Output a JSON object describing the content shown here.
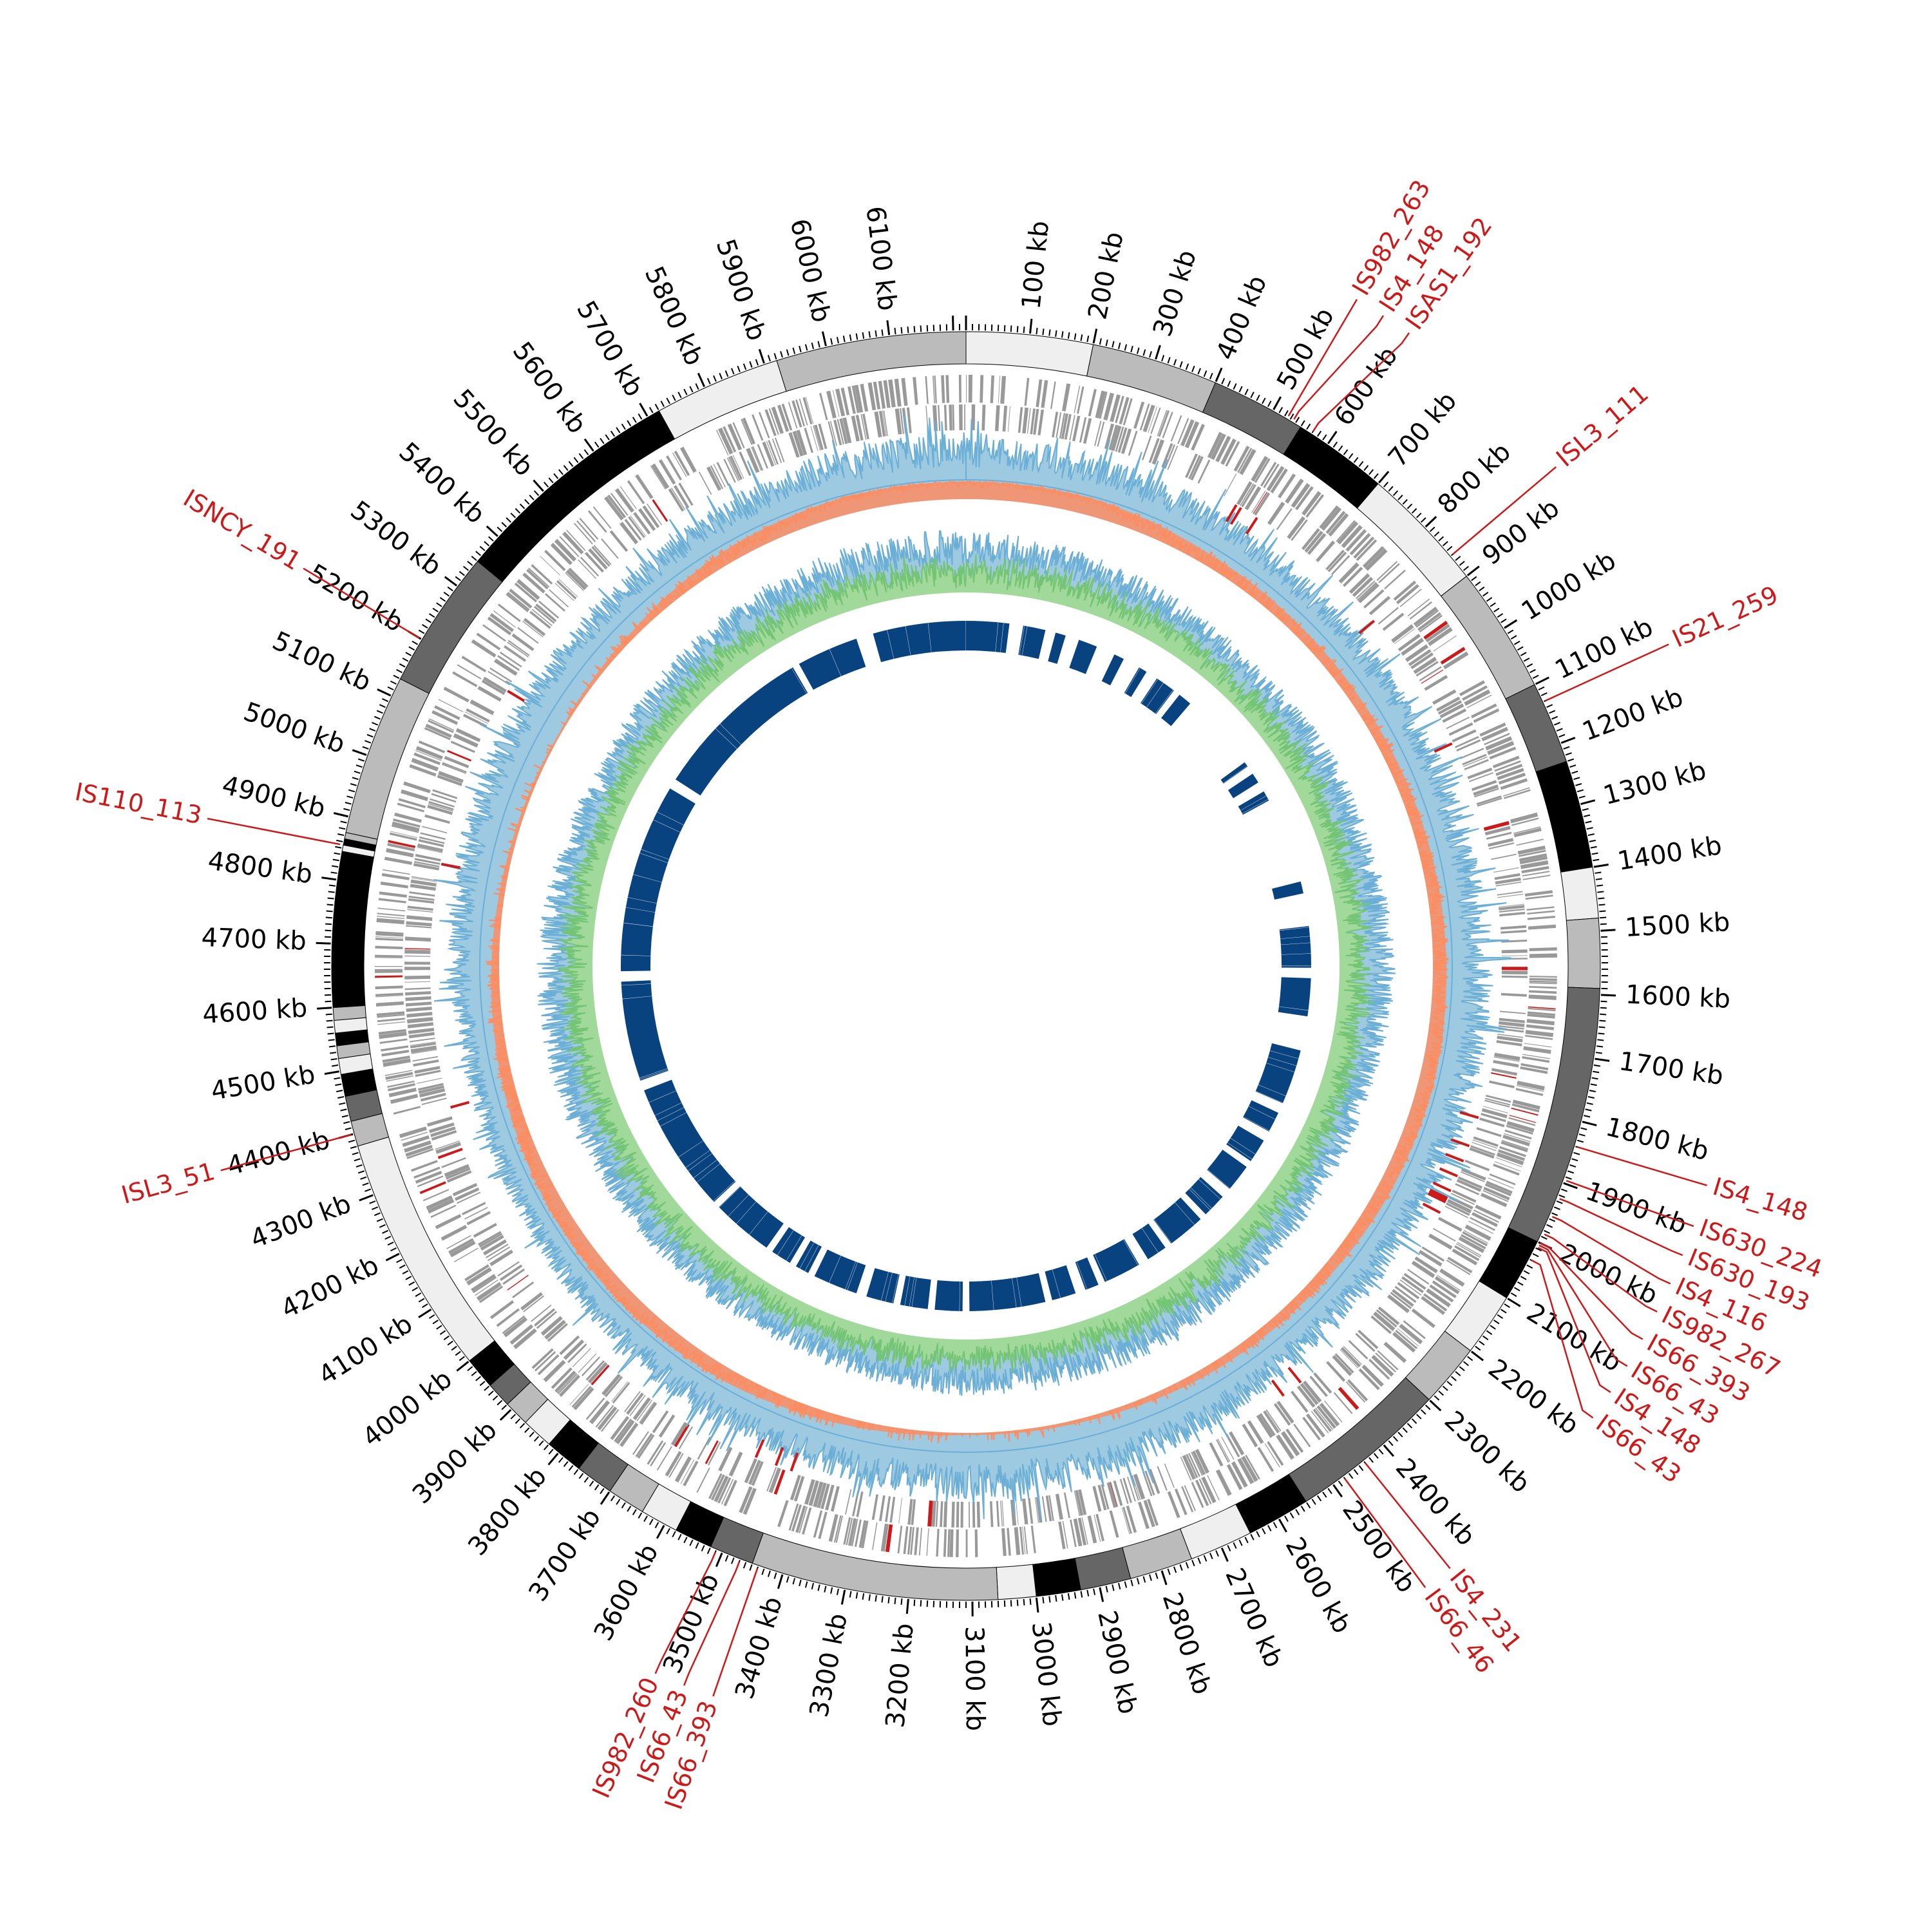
{
  "chart_data": {
    "type": "circular-genome",
    "genome_length_kb": 6220,
    "tick_unit": "kb",
    "major_tick_kb": 100,
    "minor_tick_kb": 10,
    "tick_labels": [
      "100 kb",
      "200 kb",
      "300 kb",
      "400 kb",
      "500 kb",
      "600 kb",
      "700 kb",
      "800 kb",
      "900 kb",
      "1000 kb",
      "1100 kb",
      "1200 kb",
      "1300 kb",
      "1400 kb",
      "1500 kb",
      "1600 kb",
      "1700 kb",
      "1800 kb",
      "1900 kb",
      "2000 kb",
      "2100 kb",
      "2200 kb",
      "2300 kb",
      "2400 kb",
      "2500 kb",
      "2600 kb",
      "2700 kb",
      "2800 kb",
      "2900 kb",
      "3000 kb",
      "3100 kb",
      "3200 kb",
      "3300 kb",
      "3400 kb",
      "3500 kb",
      "3600 kb",
      "3700 kb",
      "3800 kb",
      "3900 kb",
      "4000 kb",
      "4100 kb",
      "4200 kb",
      "4300 kb",
      "4400 kb",
      "4500 kb",
      "4600 kb",
      "4700 kb",
      "4800 kb",
      "4900 kb",
      "5000 kb",
      "5100 kb",
      "5200 kb",
      "5300 kb",
      "5400 kb",
      "5500 kb",
      "5600 kb",
      "5700 kb",
      "5800 kb",
      "5900 kb",
      "6000 kb",
      "6100 kb"
    ],
    "colors": {
      "band": [
        "#efefef",
        "#bbbbbb",
        "#666666",
        "#000000"
      ],
      "is_element": "#cc1a1a",
      "gene": "#999999",
      "skew_pos": "#6baed6",
      "skew_pos_fill": "#9ecae1",
      "skew_neg": "#fc8d62",
      "gc_line": "#74c476",
      "blocks": "#08427f"
    },
    "karyotype_bands": [
      [
        0,
        200,
        0
      ],
      [
        200,
        400,
        1
      ],
      [
        400,
        550,
        2
      ],
      [
        550,
        700,
        3
      ],
      [
        700,
        900,
        0
      ],
      [
        900,
        1100,
        1
      ],
      [
        1100,
        1230,
        2
      ],
      [
        1230,
        1400,
        3
      ],
      [
        1400,
        1480,
        0
      ],
      [
        1480,
        1590,
        1
      ],
      [
        1590,
        2000,
        2
      ],
      [
        2000,
        2100,
        3
      ],
      [
        2100,
        2200,
        0
      ],
      [
        2200,
        2300,
        1
      ],
      [
        2300,
        2550,
        2
      ],
      [
        2550,
        2650,
        3
      ],
      [
        2650,
        2750,
        0
      ],
      [
        2750,
        2850,
        1
      ],
      [
        2850,
        2930,
        2
      ],
      [
        2930,
        3000,
        3
      ],
      [
        3000,
        3060,
        0
      ],
      [
        3060,
        3450,
        1
      ],
      [
        3450,
        3520,
        2
      ],
      [
        3520,
        3580,
        3
      ],
      [
        3580,
        3640,
        0
      ],
      [
        3640,
        3700,
        1
      ],
      [
        3700,
        3760,
        2
      ],
      [
        3760,
        3820,
        3
      ],
      [
        3820,
        3870,
        0
      ],
      [
        3870,
        3910,
        1
      ],
      [
        3910,
        3950,
        2
      ],
      [
        3950,
        4000,
        3
      ],
      [
        4000,
        4380,
        0
      ],
      [
        4380,
        4420,
        1
      ],
      [
        4420,
        4460,
        2
      ],
      [
        4460,
        4495,
        3
      ],
      [
        4495,
        4520,
        0
      ],
      [
        4520,
        4540,
        1
      ],
      [
        4540,
        4560,
        3
      ],
      [
        4560,
        4580,
        0
      ],
      [
        4580,
        4600,
        1
      ],
      [
        4600,
        4620,
        3
      ],
      [
        4620,
        4845,
        3
      ],
      [
        4845,
        4855,
        0
      ],
      [
        4855,
        4865,
        3
      ],
      [
        4865,
        4875,
        1
      ],
      [
        4875,
        5130,
        1
      ],
      [
        5130,
        5350,
        2
      ],
      [
        5350,
        5720,
        3
      ],
      [
        5720,
        5920,
        0
      ],
      [
        5920,
        6220,
        1
      ]
    ],
    "is_elements": [
      {
        "label": "IS982_263",
        "kb": 525
      },
      {
        "label": "IS4_148",
        "kb": 535
      },
      {
        "label": "ISAS1_192",
        "kb": 570
      },
      {
        "label": "ISL3_111",
        "kb": 860
      },
      {
        "label": "IS21_259",
        "kb": 1130
      },
      {
        "label": "IS4_148",
        "kb": 1840
      },
      {
        "label": "IS630_224",
        "kb": 1895
      },
      {
        "label": "IS630_193",
        "kb": 1925
      },
      {
        "label": "IS4_116",
        "kb": 1955
      },
      {
        "label": "IS982_267",
        "kb": 1985
      },
      {
        "label": "IS66_393",
        "kb": 2000
      },
      {
        "label": "IS66_43",
        "kb": 2004
      },
      {
        "label": "IS4_148",
        "kb": 2008
      },
      {
        "label": "IS66_43",
        "kb": 2030
      },
      {
        "label": "IS4_231",
        "kb": 2440
      },
      {
        "label": "IS66_46",
        "kb": 2480
      },
      {
        "label": "IS66_393",
        "kb": 3440
      },
      {
        "label": "IS66_43",
        "kb": 3470
      },
      {
        "label": "IS982_260",
        "kb": 3510
      },
      {
        "label": "ISL3_51",
        "kb": 4400
      },
      {
        "label": "IS110_113",
        "kb": 4855
      },
      {
        "label": "ISNCY_191",
        "kb": 5200
      }
    ],
    "skew_envelope_pos": [
      0.9,
      0.8,
      0.7,
      0.6,
      0.6,
      0.7,
      0.8,
      0.8,
      0.7,
      0.6,
      0.7,
      0.9,
      0.9,
      0.8,
      0.7,
      0.6,
      0.5,
      0.5,
      0.6,
      0.7,
      0.7,
      0.6,
      0.7,
      0.9
    ],
    "skew_envelope_neg": [
      0.1,
      0.1,
      0.4,
      0.5,
      0.5,
      0.4,
      0.3,
      0.2,
      0.3,
      0.5,
      0.6,
      0.8,
      0.9,
      0.6,
      0.3,
      0.2,
      0.2,
      0.4,
      0.6,
      0.8,
      0.9,
      0.7,
      0.3,
      0.1
    ],
    "gc_envelope": [
      0.8,
      0.7,
      0.6,
      0.5,
      0.6,
      0.6,
      0.7,
      0.6,
      0.6,
      0.6,
      0.7,
      0.7,
      0.7,
      0.6,
      0.5,
      0.6,
      0.6,
      0.7,
      0.7,
      0.6,
      0.5,
      0.6,
      0.7,
      0.8
    ],
    "blocks_kb": [
      [
        5950,
        6220
      ],
      [
        0,
        125
      ],
      [
        165,
        230
      ],
      [
        260,
        290
      ],
      [
        330,
        385
      ],
      [
        440,
        470
      ],
      [
        520,
        545
      ],
      [
        580,
        640
      ],
      [
        660,
        700
      ],
      [
        930,
        945
      ],
      [
        970,
        1000
      ],
      [
        1030,
        1060
      ],
      [
        1310,
        1345
      ],
      [
        1440,
        1560
      ],
      [
        1590,
        1700
      ],
      [
        1800,
        1960
      ],
      [
        1990,
        2050
      ],
      [
        2080,
        2150
      ],
      [
        2170,
        2250
      ],
      [
        2280,
        2350
      ],
      [
        2370,
        2480
      ],
      [
        2500,
        2560
      ],
      [
        2590,
        2700
      ],
      [
        2720,
        2760
      ],
      [
        2790,
        2860
      ],
      [
        2880,
        3100
      ],
      [
        3120,
        3200
      ],
      [
        3220,
        3300
      ],
      [
        3320,
        3400
      ],
      [
        3430,
        3560
      ],
      [
        3580,
        3620
      ],
      [
        3640,
        3700
      ],
      [
        3720,
        3900
      ],
      [
        3920,
        4300
      ],
      [
        4330,
        4620
      ],
      [
        4650,
        5200
      ],
      [
        5230,
        5700
      ],
      [
        5720,
        5900
      ]
    ]
  }
}
